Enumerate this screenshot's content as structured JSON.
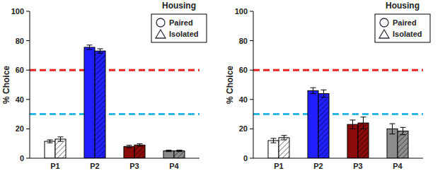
{
  "chart_data": [
    {
      "type": "bar",
      "y_label": "% Choice",
      "legend_title": "Housing",
      "legend": "upper right",
      "grid": false,
      "categories": [
        "P1",
        "P2",
        "P3",
        "P4"
      ],
      "colors": [
        "#ffffff",
        "#1f1fff",
        "#8b0a0a",
        "#8c8c8c"
      ],
      "ylim": [
        0,
        100
      ],
      "yticks": [
        0,
        20,
        40,
        60,
        80,
        100
      ],
      "reference_lines": [
        {
          "value": 60,
          "color": "#e8231f"
        },
        {
          "value": 30,
          "color": "#2bb8e6"
        }
      ],
      "series": [
        {
          "name": "Paired",
          "marker": "circle",
          "values": [
            11.5,
            75.5,
            8,
            5
          ],
          "errors": [
            1,
            1.5,
            0.8,
            0.5
          ]
        },
        {
          "name": "Isolated",
          "marker": "triangle",
          "values": [
            13,
            73,
            9,
            5
          ],
          "errors": [
            1.5,
            1.5,
            0.8,
            0.5
          ]
        }
      ]
    },
    {
      "type": "bar",
      "y_label": "% Choice",
      "legend_title": "Housing",
      "legend": "upper right",
      "grid": false,
      "categories": [
        "P1",
        "P2",
        "P3",
        "P4"
      ],
      "colors": [
        "#ffffff",
        "#1f1fff",
        "#8b0a0a",
        "#8c8c8c"
      ],
      "ylim": [
        0,
        100
      ],
      "yticks": [
        0,
        20,
        40,
        60,
        80,
        100
      ],
      "reference_lines": [
        {
          "value": 60,
          "color": "#e8231f"
        },
        {
          "value": 30,
          "color": "#2bb8e6"
        }
      ],
      "series": [
        {
          "name": "Paired",
          "marker": "circle",
          "values": [
            12,
            46,
            23,
            20
          ],
          "errors": [
            1.5,
            2,
            3,
            3.5
          ]
        },
        {
          "name": "Isolated",
          "marker": "triangle",
          "values": [
            14,
            44,
            24,
            18.5
          ],
          "errors": [
            1.5,
            2.5,
            4,
            2.5
          ]
        }
      ]
    }
  ]
}
